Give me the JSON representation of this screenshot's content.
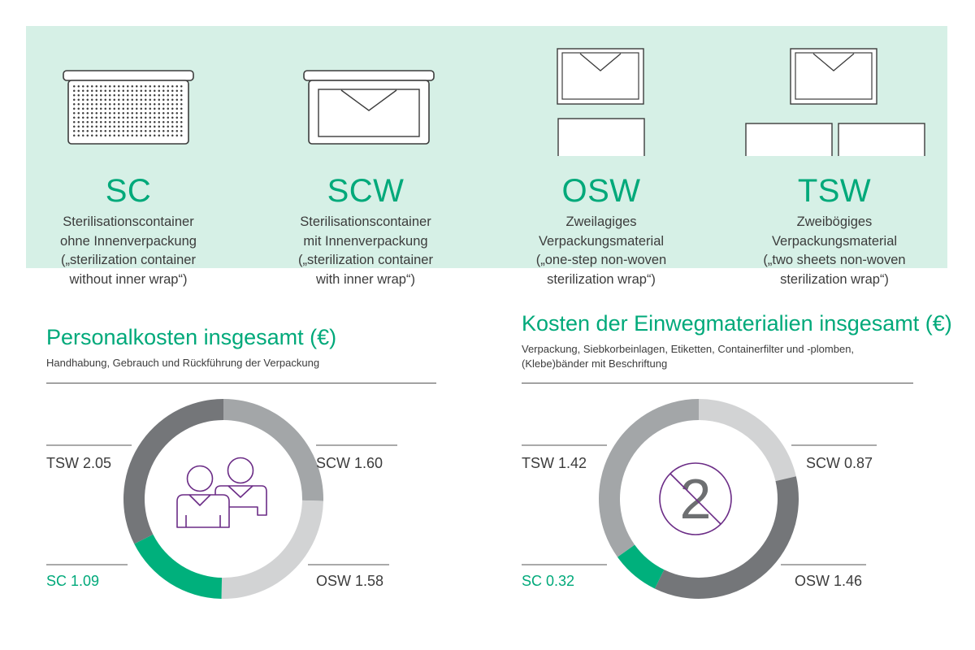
{
  "types": [
    {
      "code": "SC",
      "lines": [
        "Sterilisationscontainer",
        "ohne Innenverpackung",
        "(„sterilization container",
        "without inner wrap“)"
      ]
    },
    {
      "code": "SCW",
      "lines": [
        "Sterilisationscontainer",
        "mit Innenverpackung",
        "(„sterilization container",
        "with inner wrap“)"
      ]
    },
    {
      "code": "OSW",
      "lines": [
        "Zweilagiges",
        "Verpackungsmaterial",
        "(„one-step non-woven",
        "sterilization wrap“)"
      ]
    },
    {
      "code": "TSW",
      "lines": [
        "Zweibögiges",
        "Verpackungsmaterial",
        "(„two sheets non-woven",
        "sterilization wrap“)"
      ]
    }
  ],
  "colors": {
    "accent": "#00a97a",
    "band": "#d6f0e6",
    "purple": "#6b2c86",
    "SC": "#00b07c",
    "SCW_personnel": "#a3a6a8",
    "OSW_personnel": "#d2d3d4",
    "TSW_personnel": "#747679",
    "SCW_disposables": "#d2d3d4",
    "OSW_disposables": "#747679",
    "TSW_disposables": "#a3a6a8"
  },
  "chart_data": [
    {
      "type": "pie",
      "title": "Personalkosten insgesamt (€)",
      "subtitle": [
        "Handhabung, Gebrauch und Rückführung der Verpackung"
      ],
      "center_icon": "people-icon",
      "slices": [
        {
          "label": "SCW",
          "value": 1.6,
          "value_text": "1.60"
        },
        {
          "label": "OSW",
          "value": 1.58,
          "value_text": "1.58"
        },
        {
          "label": "SC",
          "value": 1.09,
          "value_text": "1.09"
        },
        {
          "label": "TSW",
          "value": 2.05,
          "value_text": "2.05"
        }
      ]
    },
    {
      "type": "pie",
      "title": "Kosten der Einwegmaterialien insgesamt (€)",
      "subtitle": [
        "Verpackung, Siebkorbeinlagen, Etiketten, Containerfilter und -plomben,",
        "(Klebe)bänder mit Beschriftung"
      ],
      "center_icon": "no-single-use-icon",
      "center_text": "2",
      "slices": [
        {
          "label": "SCW",
          "value": 0.87,
          "value_text": "0.87"
        },
        {
          "label": "OSW",
          "value": 1.46,
          "value_text": "1.46"
        },
        {
          "label": "SC",
          "value": 0.32,
          "value_text": "0.32"
        },
        {
          "label": "TSW",
          "value": 1.42,
          "value_text": "1.42"
        }
      ]
    }
  ]
}
